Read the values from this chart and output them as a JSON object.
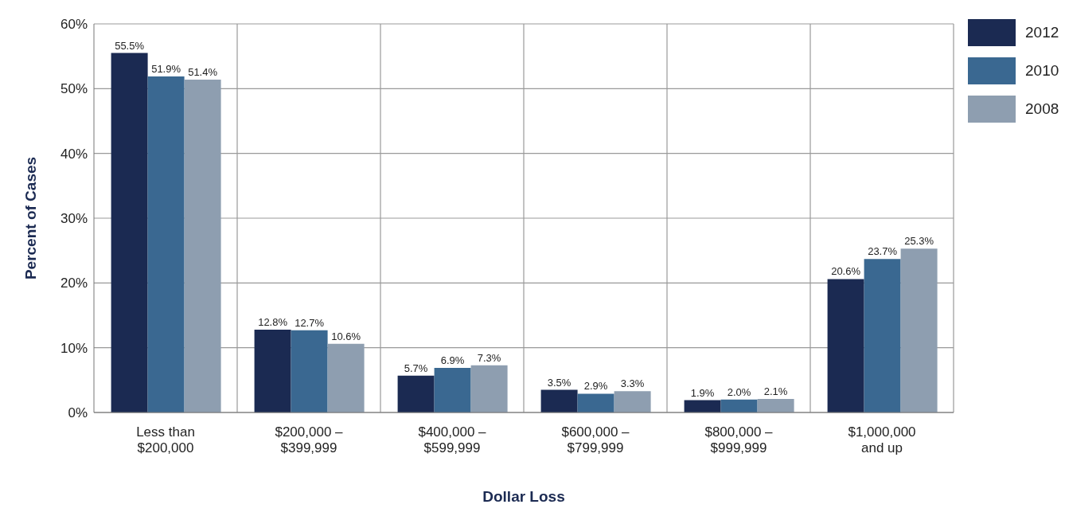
{
  "chart_data": {
    "type": "bar",
    "xlabel": "Dollar Loss",
    "ylabel": "Percent of Cases",
    "categories": [
      "Less than $200,000",
      "$200,000 – $399,999",
      "$400,000 – $599,999",
      "$600,000 – $799,999",
      "$800,000 – $999,999",
      "$1,000,000 and up"
    ],
    "series": [
      {
        "name": "2012",
        "color": "#1b2a52",
        "values": [
          55.5,
          12.8,
          5.7,
          3.5,
          1.9,
          20.6
        ],
        "value_labels": [
          "55.5%",
          "12.8%",
          "5.7%",
          "3.5%",
          "1.9%",
          "20.6%"
        ]
      },
      {
        "name": "2010",
        "color": "#3a6891",
        "values": [
          51.9,
          12.7,
          6.9,
          2.9,
          2.0,
          23.7
        ],
        "value_labels": [
          "51.9%",
          "12.7%",
          "6.9%",
          "2.9%",
          "2.0%",
          "23.7%"
        ]
      },
      {
        "name": "2008",
        "color": "#8e9eb0",
        "values": [
          51.4,
          10.6,
          7.3,
          3.3,
          2.1,
          25.3
        ],
        "value_labels": [
          "51.4%",
          "10.6%",
          "7.3%",
          "3.3%",
          "2.1%",
          "25.3%"
        ]
      }
    ],
    "ylim": [
      0,
      60
    ],
    "yticks": [
      {
        "value": 0,
        "label": "0%"
      },
      {
        "value": 10,
        "label": "10%"
      },
      {
        "value": 20,
        "label": "20%"
      },
      {
        "value": 30,
        "label": "30%"
      },
      {
        "value": 40,
        "label": "40%"
      },
      {
        "value": 50,
        "label": "50%"
      },
      {
        "value": 60,
        "label": "60%"
      }
    ],
    "grid": true,
    "legend": "top right"
  }
}
